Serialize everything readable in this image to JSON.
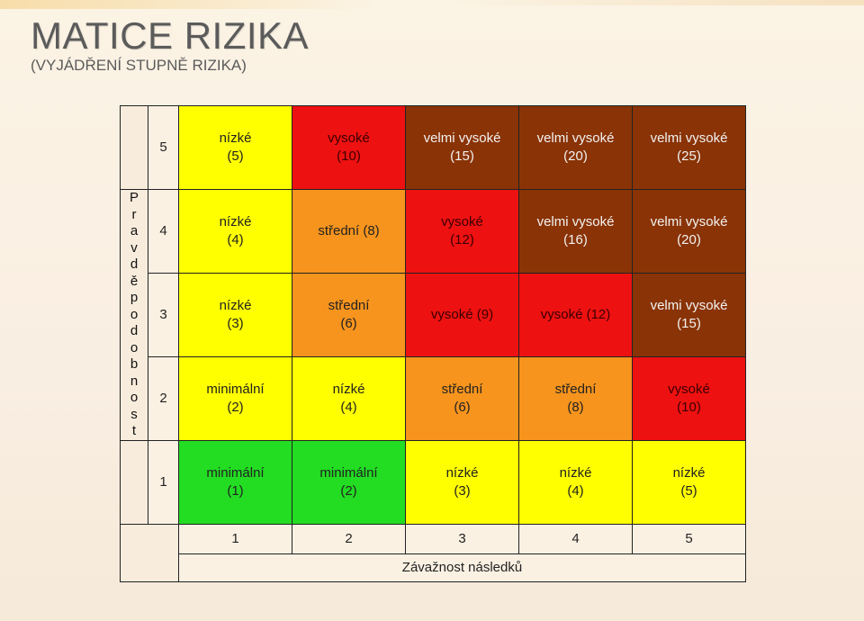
{
  "title": "MATICE RIZIKA",
  "subtitle": "(VYJÁDŘENÍ STUPNĚ RIZIKA)",
  "y_axis_label": "Pravděpodobnost",
  "x_axis_label": "Závažnost následků",
  "y_levels": [
    "5",
    "4",
    "3",
    "2",
    "1"
  ],
  "x_levels": [
    "1",
    "2",
    "3",
    "4",
    "5"
  ],
  "colors": {
    "green": "#22dd22",
    "yellow": "#ffff00",
    "orange": "#f7941d",
    "red": "#ee1111",
    "brown": "#8a3306"
  },
  "cells": {
    "r5": [
      "nízké\n(5)",
      "vysoké\n(10)",
      "velmi vysoké\n(15)",
      "velmi vysoké\n(20)",
      "velmi vysoké\n(25)"
    ],
    "r4": [
      "nízké\n(4)",
      "střední (8)",
      "vysoké\n(12)",
      "velmi vysoké\n(16)",
      "velmi vysoké\n(20)"
    ],
    "r3": [
      "nízké\n(3)",
      "střední\n(6)",
      "vysoké (9)",
      "vysoké (12)",
      "velmi vysoké\n(15)"
    ],
    "r2": [
      "minimální\n(2)",
      "nízké\n(4)",
      "střední\n(6)",
      "střední\n(8)",
      "vysoké\n(10)"
    ],
    "r1": [
      "minimální\n(1)",
      "minimální\n(2)",
      "nízké\n(3)",
      "nízké\n(4)",
      "nízké\n(5)"
    ]
  }
}
